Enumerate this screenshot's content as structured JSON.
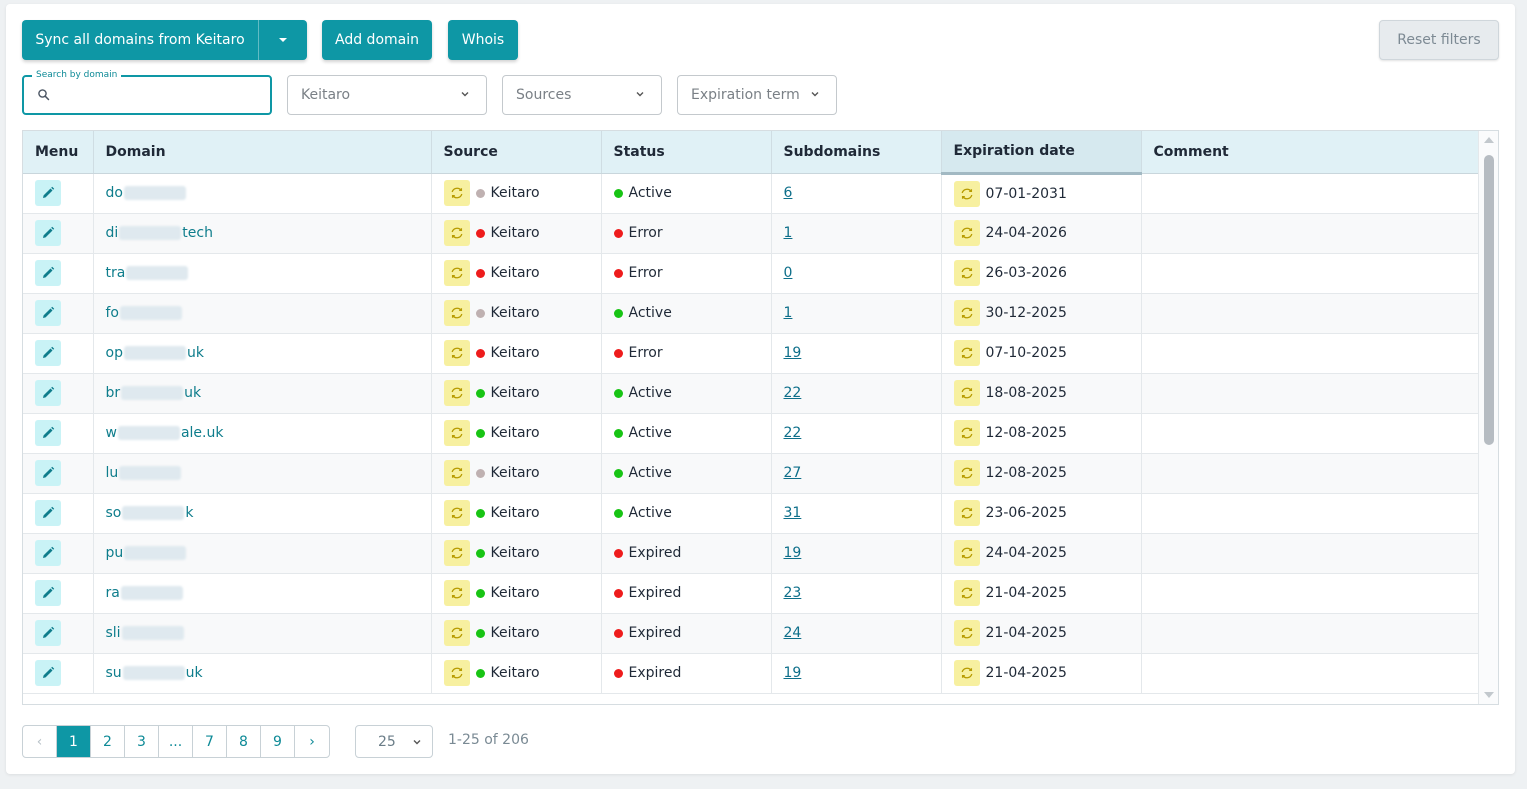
{
  "toolbar": {
    "sync_label": "Sync all domains from Keitaro",
    "add_label": "Add domain",
    "whois_label": "Whois",
    "reset_label": "Reset filters"
  },
  "filters": {
    "search_legend": "Search by domain",
    "search_value": "",
    "keitaro": "Keitaro",
    "sources": "Sources",
    "expiration": "Expiration term"
  },
  "columns": [
    "Menu",
    "Domain",
    "Source",
    "Status",
    "Subdomains",
    "Expiration date",
    "Comment"
  ],
  "rows": [
    {
      "d1": "do",
      "d2": "",
      "source": "Keitaro",
      "src_color": "#bfb1b1",
      "status": "Active",
      "status_color": "#18c414",
      "sub": "6",
      "exp": "07-01-2031"
    },
    {
      "d1": "di",
      "d2": "tech",
      "source": "Keitaro",
      "src_color": "#ee1c1c",
      "status": "Error",
      "status_color": "#ee1c1c",
      "sub": "1",
      "exp": "24-04-2026"
    },
    {
      "d1": "tra",
      "d2": "",
      "source": "Keitaro",
      "src_color": "#ee1c1c",
      "status": "Error",
      "status_color": "#ee1c1c",
      "sub": "0",
      "exp": "26-03-2026"
    },
    {
      "d1": "fo",
      "d2": "",
      "source": "Keitaro",
      "src_color": "#bfb1b1",
      "status": "Active",
      "status_color": "#18c414",
      "sub": "1",
      "exp": "30-12-2025"
    },
    {
      "d1": "op",
      "d2": "uk",
      "source": "Keitaro",
      "src_color": "#ee1c1c",
      "status": "Error",
      "status_color": "#ee1c1c",
      "sub": "19",
      "exp": "07-10-2025"
    },
    {
      "d1": "br",
      "d2": "uk",
      "source": "Keitaro",
      "src_color": "#18c414",
      "status": "Active",
      "status_color": "#18c414",
      "sub": "22",
      "exp": "18-08-2025"
    },
    {
      "d1": "w",
      "d2": "ale.uk",
      "source": "Keitaro",
      "src_color": "#18c414",
      "status": "Active",
      "status_color": "#18c414",
      "sub": "22",
      "exp": "12-08-2025"
    },
    {
      "d1": "lu",
      "d2": "",
      "source": "Keitaro",
      "src_color": "#bfb1b1",
      "status": "Active",
      "status_color": "#18c414",
      "sub": "27",
      "exp": "12-08-2025"
    },
    {
      "d1": "so",
      "d2": "k",
      "source": "Keitaro",
      "src_color": "#18c414",
      "status": "Active",
      "status_color": "#18c414",
      "sub": "31",
      "exp": "23-06-2025"
    },
    {
      "d1": "pu",
      "d2": "",
      "source": "Keitaro",
      "src_color": "#18c414",
      "status": "Expired",
      "status_color": "#ee1c1c",
      "sub": "19",
      "exp": "24-04-2025"
    },
    {
      "d1": "ra",
      "d2": "",
      "source": "Keitaro",
      "src_color": "#18c414",
      "status": "Expired",
      "status_color": "#ee1c1c",
      "sub": "23",
      "exp": "21-04-2025"
    },
    {
      "d1": "sli",
      "d2": "",
      "source": "Keitaro",
      "src_color": "#18c414",
      "status": "Expired",
      "status_color": "#ee1c1c",
      "sub": "24",
      "exp": "21-04-2025"
    },
    {
      "d1": "su",
      "d2": "uk",
      "source": "Keitaro",
      "src_color": "#18c414",
      "status": "Expired",
      "status_color": "#ee1c1c",
      "sub": "19",
      "exp": "21-04-2025"
    }
  ],
  "pagination": {
    "prev": "‹",
    "pages": [
      "1",
      "2",
      "3",
      "...",
      "7",
      "8",
      "9"
    ],
    "active": "1",
    "next": "›",
    "per_page": "25",
    "range": "1-25  of  206"
  },
  "colors": {
    "accent": "#0e97a5",
    "status_active": "#18c414",
    "status_error": "#ee1c1c",
    "source_neutral": "#bfb1b1"
  },
  "icons": {
    "edit": "pencil-icon",
    "source": "sync-icon",
    "search": "search-icon"
  }
}
